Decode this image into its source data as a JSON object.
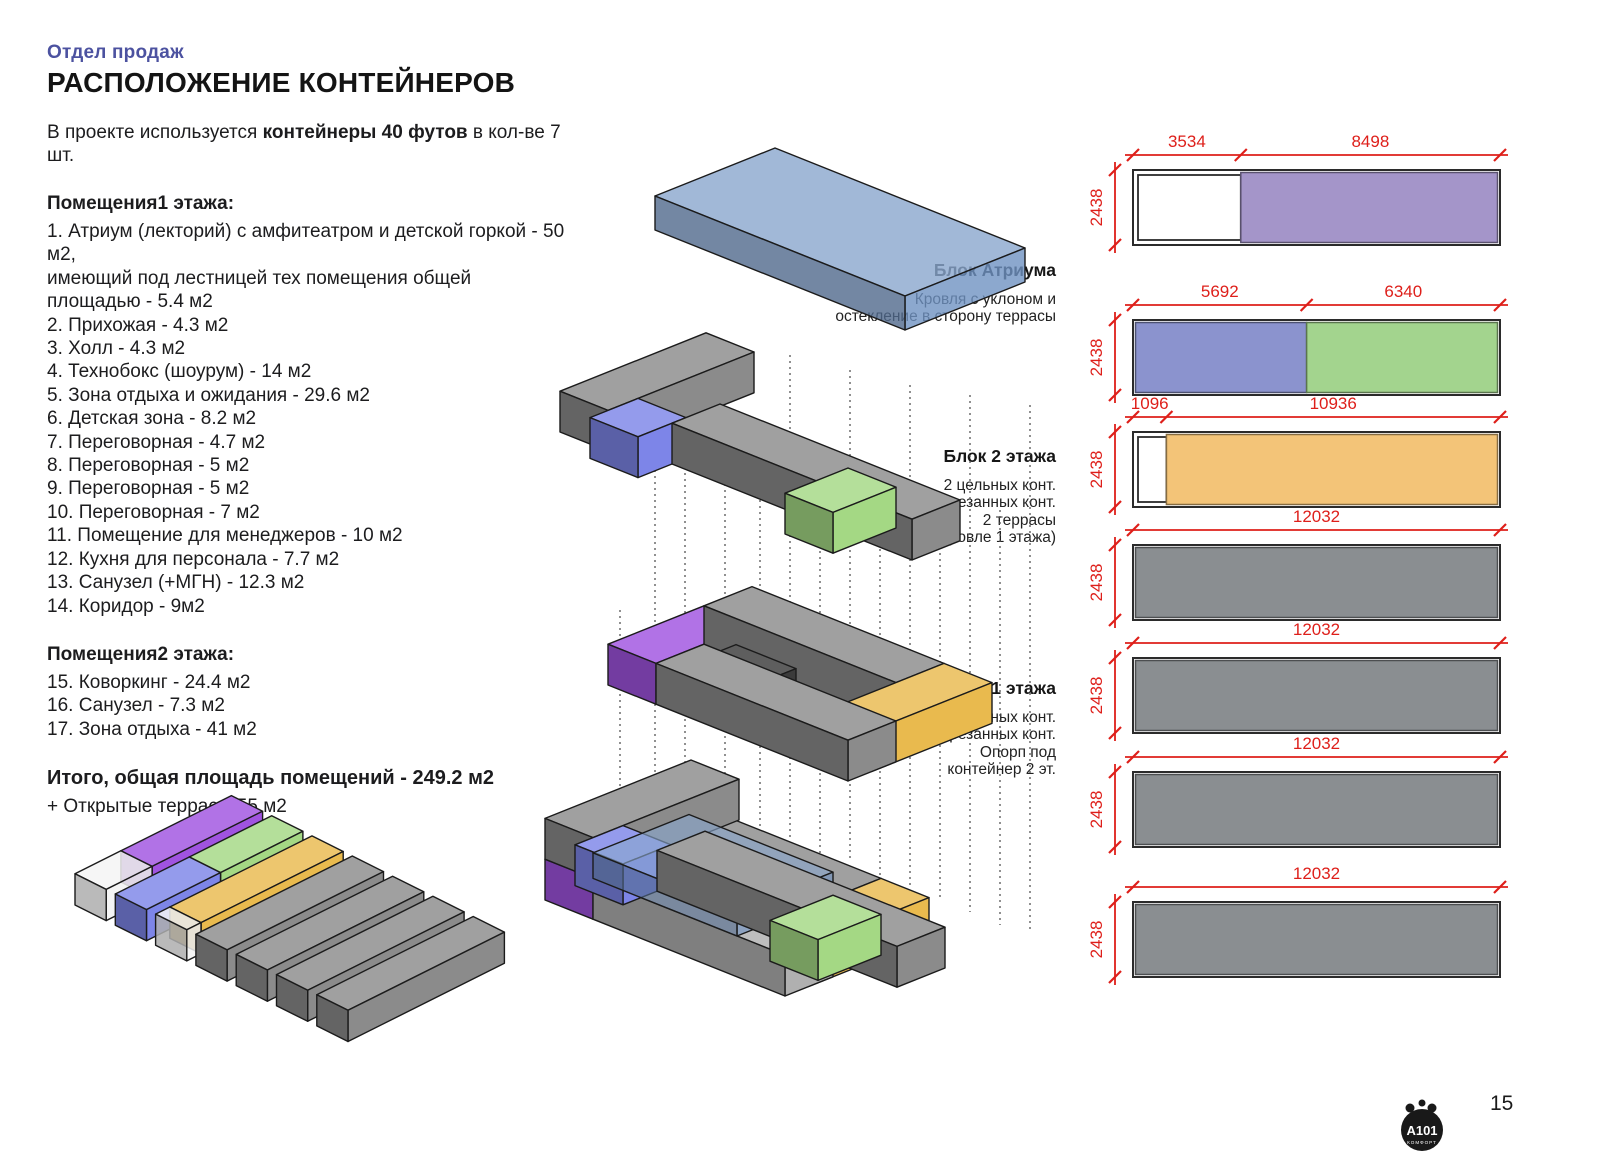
{
  "page": {
    "eyebrow": "Отдел продаж",
    "title": "РАСПОЛОЖЕНИЕ КОНТЕЙНЕРОВ",
    "intro_prefix": "В проекте используется ",
    "intro_bold": "контейнеры 40 футов",
    "intro_suffix": " в кол-ве 7 шт.",
    "page_number": "15"
  },
  "room_list": {
    "floor1": {
      "heading": "Помещения1 этажа:",
      "items": [
        "1. Атриум (лекторий) с амфитеатром и детской горкой - 50 м2,",
        "имеющий под лестницей тех помещения общей площадью - 5.4 м2",
        "2. Прихожая - 4.3 м2",
        "3. Холл - 4.3 м2",
        "4. Технобокс (шоурум) - 14 м2",
        "5. Зона отдыха и ожидания - 29.6 м2",
        "6. Детская зона - 8.2 м2",
        "7. Переговорная - 4.7 м2",
        "8. Переговорная - 5 м2",
        "9. Переговорная - 5 м2",
        "10. Переговорная - 7 м2",
        "11. Помещение для менеджеров - 10 м2",
        "12. Кухня для персонала - 7.7 м2",
        "13. Санузел (+МГН) - 12.3 м2",
        "14. Коридор - 9м2"
      ]
    },
    "floor2": {
      "heading": "Помещения2 этажа:",
      "items": [
        "15. Коворкинг - 24.4 м2",
        "16. Санузел - 7.3 м2",
        "17. Зона отдыха - 41 м2"
      ]
    },
    "totals": {
      "total": "Итого, общая площадь помещений - 249.2 м2",
      "terraces": "+ Открытые террасы 55 м2"
    }
  },
  "annotations": [
    {
      "title": "Блок Атриума",
      "lines": [
        "Кровля с уклоном и",
        "остекление в сторону террасы"
      ]
    },
    {
      "title": "Блок 2 этажа",
      "lines": [
        "2 цельных конт.",
        "2 обрезанных конт.",
        "2 террасы",
        "(на кровле 1 этажа)"
      ]
    },
    {
      "title": "Блок 1 этажа",
      "lines": [
        "2 цельных конт.",
        "2 обрезанных конт.",
        "Опорп под",
        "контейнер 2 эт."
      ]
    }
  ],
  "containers": [
    {
      "height_mm": "2438",
      "segments": [
        {
          "length_mm": "3534",
          "color": "white"
        },
        {
          "length_mm": "8498",
          "color": "purple"
        }
      ]
    },
    {
      "height_mm": "2438",
      "segments": [
        {
          "length_mm": "5692",
          "color": "blue"
        },
        {
          "length_mm": "6340",
          "color": "green"
        }
      ]
    },
    {
      "height_mm": "2438",
      "segments": [
        {
          "length_mm": "1096",
          "color": "white"
        },
        {
          "length_mm": "10936",
          "color": "orange"
        }
      ]
    },
    {
      "height_mm": "2438",
      "segments": [
        {
          "length_mm": "12032",
          "color": "grey"
        }
      ]
    },
    {
      "height_mm": "2438",
      "segments": [
        {
          "length_mm": "12032",
          "color": "grey"
        }
      ]
    },
    {
      "height_mm": "2438",
      "segments": [
        {
          "length_mm": "12032",
          "color": "grey"
        }
      ]
    },
    {
      "height_mm": "2438",
      "segments": [
        {
          "length_mm": "12032",
          "color": "grey"
        }
      ]
    }
  ],
  "colors": {
    "dim_red": "#de1f1a",
    "eyebrow_blue": "#4c52a0",
    "text": "#1c1c1e",
    "row": {
      "white": "#ffffff",
      "purple": "#a495c9",
      "blue": "#8b93ce",
      "green": "#a3d48e",
      "orange": "#f3c478",
      "grey": "#8a8e91"
    },
    "iso": {
      "white": "#f2f2f2",
      "purple": "#a053e0",
      "blue": "#7d85e8",
      "green": "#a4d884",
      "orange": "#e9ba4e",
      "grey": "#8b8b8b",
      "lightgrey": "#b0b0b0",
      "dark": "#3b3b3b",
      "roof": "#6f92c2"
    }
  },
  "logo": {
    "text": "A101",
    "subtext": "КОМФОРТ"
  }
}
